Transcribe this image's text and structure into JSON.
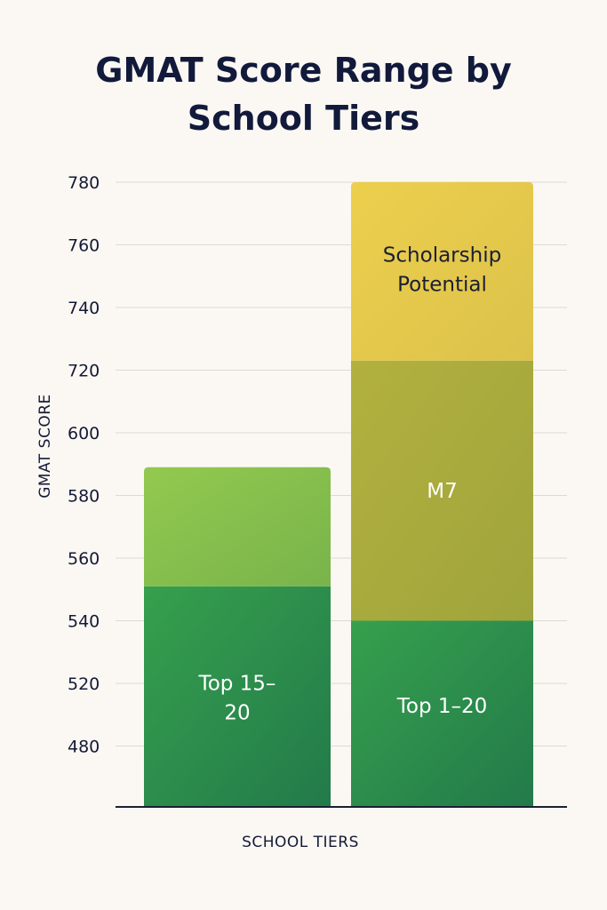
{
  "chart_data": {
    "type": "bar",
    "stacked": true,
    "title_lines": [
      "GMAT Score Range by",
      "School Tiers"
    ],
    "xlabel": "SCHOOL TIERS",
    "ylabel": "GMAT SCORE",
    "y_ticks": [
      "780",
      "760",
      "740",
      "720",
      "600",
      "580",
      "560",
      "540",
      "520",
      "480"
    ],
    "grid": true,
    "bars": [
      {
        "segments": [
          {
            "bottom": "480",
            "top": "~551",
            "label_lines": [
              "Top 15–",
              "20"
            ],
            "color": "#2e9149",
            "text_color": "#ffffff"
          },
          {
            "bottom": "~551",
            "top": "~589",
            "label_lines": [],
            "color": "#86c04d",
            "text_color": "#ffffff"
          }
        ]
      },
      {
        "segments": [
          {
            "bottom": "480",
            "top": "540",
            "label_lines": [
              "Top 1–20"
            ],
            "color": "#2a8a4c",
            "text_color": "#ffffff"
          },
          {
            "bottom": "540",
            "top": "~723",
            "label_lines": [
              "M7"
            ],
            "color": "#a8ab3d",
            "text_color": "#ffffff"
          },
          {
            "bottom": "~723",
            "top": "780",
            "label_lines": [
              "Scholarship",
              "Potential"
            ],
            "color": "#e6c94c",
            "text_color": "#1b1f33"
          }
        ]
      }
    ]
  }
}
